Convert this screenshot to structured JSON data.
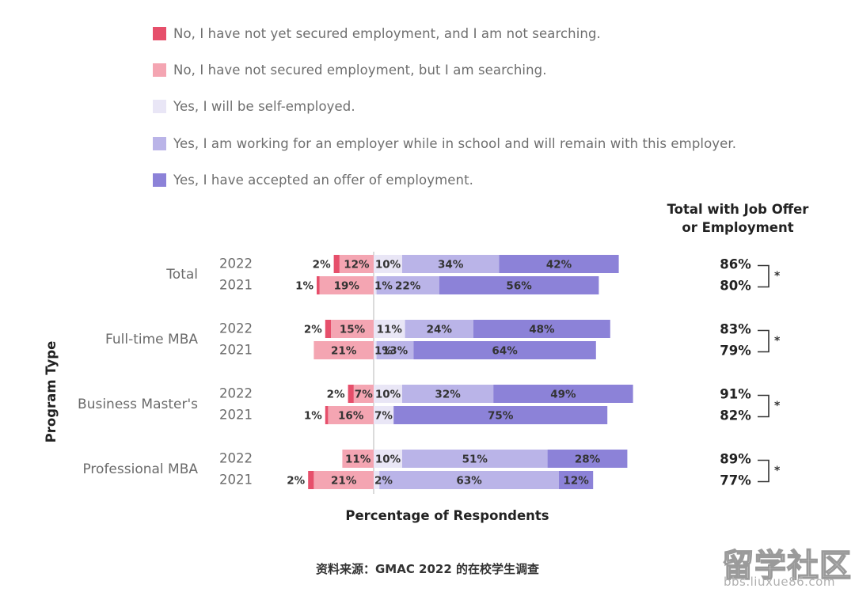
{
  "legend": [
    {
      "label": "No, I have not yet secured employment, and I am not searching.",
      "color": "#e64f6b"
    },
    {
      "label": "No, I have not secured employment, but I am searching.",
      "color": "#f4a5b2"
    },
    {
      "label": "Yes, I will be self-employed.",
      "color": "#e9e6f6"
    },
    {
      "label": "Yes, I am working for an employer while in school and will remain with this employer.",
      "color": "#bab4e8"
    },
    {
      "label": "Yes, I have accepted an offer of employment.",
      "color": "#8c82d8"
    }
  ],
  "right_header": [
    "Total with Job Offer",
    "or Employment"
  ],
  "source_note": "资料来源：GMAC 2022 的在校学生调查",
  "watermark": {
    "main": "留学社区",
    "sub": "bbs.liuxue86.com"
  },
  "chart_data": {
    "type": "bar",
    "orientation": "horizontal",
    "stacked": "diverging",
    "xlabel": "Percentage of Respondents",
    "ylabel": "Program Type",
    "significance_marker": "*",
    "groups": [
      {
        "name": "Total",
        "rows": [
          {
            "year": "2022",
            "values": [
              2,
              12,
              10,
              34,
              42
            ],
            "total": "86%"
          },
          {
            "year": "2021",
            "values": [
              1,
              19,
              1,
              22,
              56
            ],
            "total": "80%"
          }
        ]
      },
      {
        "name": "Full-time MBA",
        "rows": [
          {
            "year": "2022",
            "values": [
              2,
              15,
              11,
              24,
              48
            ],
            "total": "83%"
          },
          {
            "year": "2021",
            "values": [
              0,
              21,
              1,
              13,
              64
            ],
            "total": "79%"
          }
        ]
      },
      {
        "name": "Business Master's",
        "rows": [
          {
            "year": "2022",
            "values": [
              2,
              7,
              10,
              32,
              49
            ],
            "total": "91%"
          },
          {
            "year": "2021",
            "values": [
              1,
              16,
              7,
              0,
              75
            ],
            "total": "82%"
          }
        ]
      },
      {
        "name": "Professional MBA",
        "rows": [
          {
            "year": "2022",
            "values": [
              0,
              11,
              10,
              51,
              28
            ],
            "total": "89%"
          },
          {
            "year": "2021",
            "values": [
              2,
              21,
              2,
              63,
              12
            ],
            "total": "77%"
          }
        ]
      }
    ]
  }
}
